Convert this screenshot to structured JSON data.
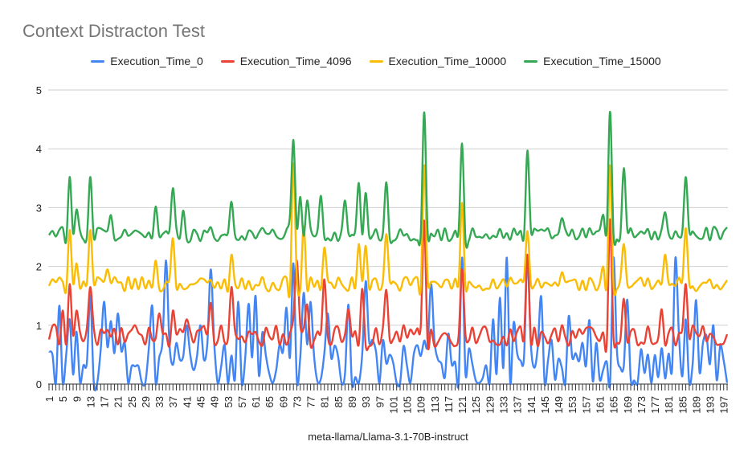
{
  "chart_data": {
    "type": "line",
    "title": "Context Distracton Test",
    "xlabel": "meta-llama/Llama-3.1-70B-instruct",
    "ylabel": "",
    "ylim": [
      0,
      5
    ],
    "yticks": [
      "0",
      "1",
      "2",
      "3",
      "4",
      "5"
    ],
    "x_start": 1,
    "x_end": 198,
    "x_tick_labels": [
      "1",
      "5",
      "9",
      "13",
      "17",
      "21",
      "25",
      "29",
      "33",
      "37",
      "41",
      "45",
      "49",
      "53",
      "57",
      "61",
      "65",
      "69",
      "73",
      "77",
      "81",
      "85",
      "89",
      "93",
      "97",
      "101",
      "105",
      "109",
      "113",
      "117",
      "121",
      "125",
      "129",
      "133",
      "137",
      "141",
      "145",
      "149",
      "153",
      "157",
      "161",
      "165",
      "169",
      "173",
      "177",
      "181",
      "185",
      "189",
      "193",
      "197"
    ],
    "grid": true,
    "legend_position": "top",
    "series": [
      {
        "name": "Execution_Time_0",
        "color": "#4285f4",
        "baseline": 0.3,
        "spread": 0.45,
        "peaks": [
          [
            7,
            1.1
          ],
          [
            13,
            1.5
          ],
          [
            17,
            1.4
          ],
          [
            21,
            1.2
          ],
          [
            26,
            0.3
          ],
          [
            34,
            2.35
          ],
          [
            35,
            2.1
          ],
          [
            38,
            0.7
          ],
          [
            41,
            1.0
          ],
          [
            45,
            1.0
          ],
          [
            48,
            1.95
          ],
          [
            56,
            1.4
          ],
          [
            61,
            1.5
          ],
          [
            70,
            1.3
          ],
          [
            72,
            2.05
          ],
          [
            75,
            1.55
          ],
          [
            82,
            1.2
          ],
          [
            88,
            1.35
          ],
          [
            93,
            1.75
          ],
          [
            100,
            0.5
          ],
          [
            111,
            2.05
          ],
          [
            112,
            1.7
          ],
          [
            121,
            2.15
          ],
          [
            130,
            1.1
          ],
          [
            134,
            2.15
          ],
          [
            136,
            1.05
          ],
          [
            140,
            2.15
          ],
          [
            147,
            0.75
          ],
          [
            165,
            2.15
          ],
          [
            175,
            0.5
          ],
          [
            183,
            2.15
          ],
          [
            186,
            1.1
          ],
          [
            194,
            1.0
          ],
          [
            196,
            0.65
          ]
        ]
      },
      {
        "name": "Execution_Time_4096",
        "color": "#ea4335",
        "baseline": 0.82,
        "spread": 0.18,
        "peaks": [
          [
            5,
            1.25
          ],
          [
            7,
            1.7
          ],
          [
            9,
            1.25
          ],
          [
            13,
            1.65
          ],
          [
            33,
            1.2
          ],
          [
            37,
            1.25
          ],
          [
            41,
            1.1
          ],
          [
            48,
            1.38
          ],
          [
            54,
            1.65
          ],
          [
            72,
            2.3
          ],
          [
            73,
            2.1
          ],
          [
            76,
            1.35
          ],
          [
            81,
            1.78
          ],
          [
            88,
            1.27
          ],
          [
            92,
            1.62
          ],
          [
            99,
            1.6
          ],
          [
            104,
            1.0
          ],
          [
            110,
            2.78
          ],
          [
            121,
            1.95
          ],
          [
            140,
            2.2
          ],
          [
            150,
            1.0
          ],
          [
            164,
            2.8
          ],
          [
            168,
            1.45
          ],
          [
            179,
            1.27
          ],
          [
            186,
            1.7
          ]
        ]
      },
      {
        "name": "Execution_Time_10000",
        "color": "#fbbc04",
        "baseline": 1.7,
        "spread": 0.12,
        "peaks": [
          [
            7,
            2.62
          ],
          [
            9,
            2.05
          ],
          [
            13,
            2.62
          ],
          [
            18,
            1.95
          ],
          [
            32,
            2.1
          ],
          [
            37,
            2.48
          ],
          [
            54,
            2.2
          ],
          [
            72,
            3.75
          ],
          [
            75,
            2.68
          ],
          [
            81,
            2.32
          ],
          [
            91,
            2.38
          ],
          [
            93,
            2.35
          ],
          [
            99,
            2.55
          ],
          [
            110,
            3.72
          ],
          [
            121,
            3.08
          ],
          [
            140,
            2.6
          ],
          [
            150,
            1.9
          ],
          [
            162,
            2.0
          ],
          [
            164,
            3.72
          ],
          [
            168,
            2.38
          ],
          [
            180,
            2.2
          ],
          [
            186,
            2.65
          ]
        ]
      },
      {
        "name": "Execution_Time_15000",
        "color": "#34a853",
        "baseline": 2.55,
        "spread": 0.12,
        "peaks": [
          [
            7,
            3.52
          ],
          [
            9,
            2.97
          ],
          [
            13,
            3.52
          ],
          [
            19,
            2.87
          ],
          [
            32,
            3.02
          ],
          [
            37,
            3.33
          ],
          [
            40,
            2.95
          ],
          [
            54,
            3.1
          ],
          [
            71,
            2.87
          ],
          [
            72,
            4.15
          ],
          [
            74,
            3.18
          ],
          [
            76,
            3.12
          ],
          [
            80,
            3.2
          ],
          [
            87,
            3.12
          ],
          [
            91,
            3.42
          ],
          [
            93,
            3.25
          ],
          [
            99,
            3.43
          ],
          [
            110,
            4.62
          ],
          [
            121,
            4.09
          ],
          [
            140,
            3.97
          ],
          [
            150,
            2.82
          ],
          [
            162,
            2.88
          ],
          [
            164,
            4.63
          ],
          [
            168,
            3.67
          ],
          [
            180,
            2.92
          ],
          [
            186,
            3.52
          ]
        ]
      }
    ]
  }
}
